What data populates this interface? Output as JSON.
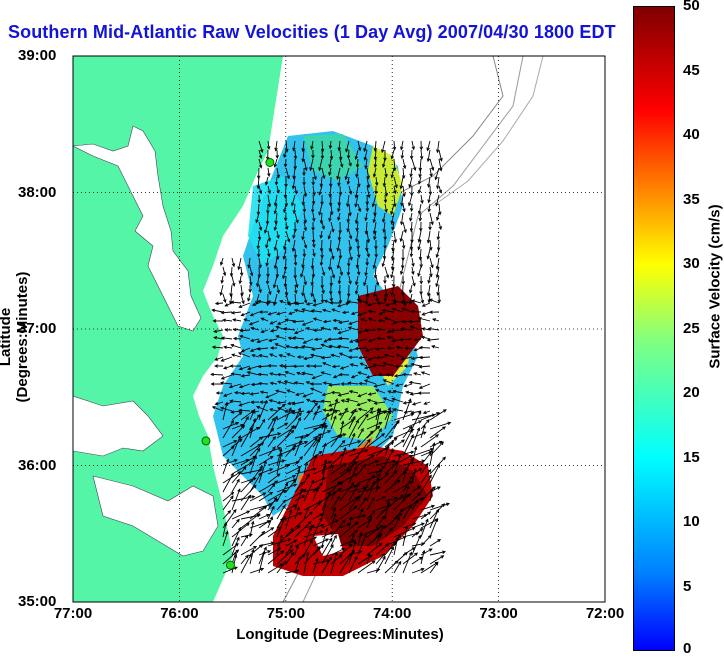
{
  "title": "Southern Mid-Atlantic Raw Velocities (1 Day Avg) 2007/04/30 1800 EDT",
  "axes": {
    "xlabel": "Longitude (Degrees:Minutes)",
    "ylabel": "Latitude (Degrees:Minutes)",
    "xticks": [
      "77:00",
      "76:00",
      "75:00",
      "74:00",
      "73:00",
      "72:00"
    ],
    "yticks": [
      "39:00",
      "38:00",
      "37:00",
      "36:00",
      "35:00"
    ]
  },
  "colorbar": {
    "label": "Surface Velocity (cm/s)",
    "ticks": [
      "50",
      "45",
      "40",
      "35",
      "30",
      "25",
      "20",
      "15",
      "10",
      "5",
      "0"
    ],
    "range": [
      0,
      50
    ],
    "units": "cm/s"
  },
  "map": {
    "lon_range": [
      -77,
      -72
    ],
    "lat_range": [
      35,
      39
    ],
    "grid": true,
    "land_color": "#55f5a8",
    "stations": [
      {
        "lat": 38.22,
        "lon": -75.15
      },
      {
        "lat": 36.18,
        "lon": -75.75
      },
      {
        "lat": 35.27,
        "lon": -75.52
      }
    ]
  }
}
